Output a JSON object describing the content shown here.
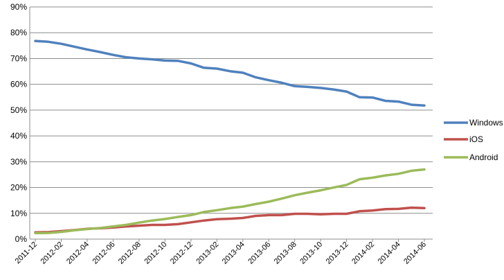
{
  "chart_data": {
    "type": "line",
    "title": "",
    "xlabel": "",
    "ylabel": "",
    "ylim": [
      0,
      90
    ],
    "y_ticks": [
      "0%",
      "10%",
      "20%",
      "30%",
      "40%",
      "50%",
      "60%",
      "70%",
      "80%",
      "90%"
    ],
    "y_tick_values": [
      0,
      10,
      20,
      30,
      40,
      50,
      60,
      70,
      80,
      90
    ],
    "x": [
      "2011-12",
      "2012-01",
      "2012-02",
      "2012-03",
      "2012-04",
      "2012-05",
      "2012-06",
      "2012-07",
      "2012-08",
      "2012-09",
      "2012-10",
      "2012-11",
      "2012-12",
      "2013-01",
      "2013-02",
      "2013-03",
      "2013-04",
      "2013-05",
      "2013-06",
      "2013-07",
      "2013-08",
      "2013-09",
      "2013-10",
      "2013-11",
      "2013-12",
      "2014-01",
      "2014-02",
      "2014-03",
      "2014-04",
      "2014-05",
      "2014-06"
    ],
    "x_tick_labels": [
      "2011-12",
      "2012-02",
      "2012-04",
      "2012-06",
      "2012-08",
      "2012-10",
      "2012-12",
      "2013-02",
      "2013-04",
      "2013-06",
      "2013-08",
      "2013-10",
      "2013-12",
      "2014-02",
      "2014-04",
      "2014-06"
    ],
    "grid": true,
    "legend_position": "right",
    "series": [
      {
        "name": "Windows",
        "color": "#4f81bd",
        "values": [
          76.8,
          76.5,
          75.7,
          74.6,
          73.5,
          72.5,
          71.4,
          70.5,
          70.0,
          69.7,
          69.2,
          69.1,
          68.1,
          66.4,
          66.1,
          65.1,
          64.5,
          62.7,
          61.6,
          60.6,
          59.3,
          59.0,
          58.6,
          58.0,
          57.2,
          55.0,
          54.9,
          53.6,
          53.3,
          52.1,
          51.8
        ]
      },
      {
        "name": "iOS",
        "color": "#c0504d",
        "values": [
          2.6,
          2.7,
          3.1,
          3.5,
          4.0,
          4.2,
          4.5,
          4.9,
          5.2,
          5.5,
          5.5,
          5.8,
          6.5,
          7.2,
          7.7,
          7.9,
          8.2,
          9.0,
          9.3,
          9.3,
          9.8,
          9.8,
          9.6,
          9.8,
          9.8,
          10.8,
          11.1,
          11.6,
          11.7,
          12.2,
          12.0
        ]
      },
      {
        "name": "Android",
        "color": "#9bbb59",
        "values": [
          2.3,
          2.4,
          2.8,
          3.4,
          3.9,
          4.3,
          4.9,
          5.5,
          6.4,
          7.2,
          7.8,
          8.6,
          9.3,
          10.5,
          11.2,
          12.0,
          12.6,
          13.6,
          14.5,
          15.7,
          17.0,
          18.0,
          18.9,
          20.0,
          21.0,
          23.2,
          23.8,
          24.7,
          25.3,
          26.5,
          27.0
        ]
      }
    ]
  }
}
